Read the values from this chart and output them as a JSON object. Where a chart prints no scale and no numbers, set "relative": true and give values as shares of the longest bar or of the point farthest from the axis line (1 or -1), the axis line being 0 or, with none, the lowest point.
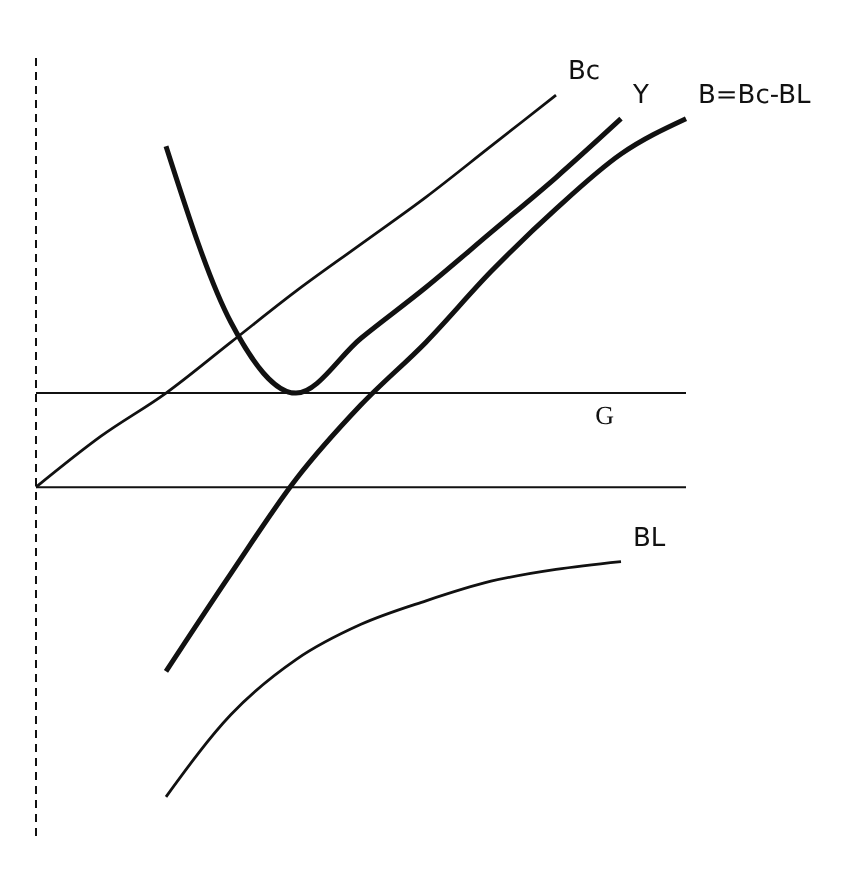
{
  "chart_data": {
    "type": "line",
    "relative": true,
    "categories": [
      null,
      null,
      null,
      null,
      null,
      null,
      null,
      null,
      null,
      null,
      null
    ],
    "series": [
      {
        "name": "Y",
        "color": "#111111",
        "values": [
          null,
          null,
          0.87,
          0.42,
          0.24,
          0.38,
          0.51,
          0.65,
          0.79,
          0.94,
          null
        ]
      },
      {
        "name": "Bc",
        "color": "#111111",
        "values": [
          0,
          0.13,
          0.24,
          0.37,
          0.5,
          0.62,
          0.74,
          0.87,
          1,
          null,
          null
        ]
      },
      {
        "name": "B=Bc-BL",
        "color": "#111111",
        "values": [
          null,
          null,
          -0.47,
          -0.22,
          0.02,
          0.21,
          0.37,
          0.55,
          0.71,
          0.85,
          0.94
        ]
      },
      {
        "name": "BL",
        "color": "#111111",
        "values": [
          null,
          null,
          -0.79,
          -0.58,
          -0.44,
          -0.35,
          -0.29,
          -0.24,
          -0.21,
          -0.19,
          null
        ]
      }
    ],
    "ref_lines": [
      {
        "axis": "y",
        "value": 0.24,
        "label": "G",
        "color": "#111111"
      }
    ],
    "marker": "none",
    "line_style": "solid",
    "legend": false,
    "grid": false,
    "tick_labels": false
  }
}
